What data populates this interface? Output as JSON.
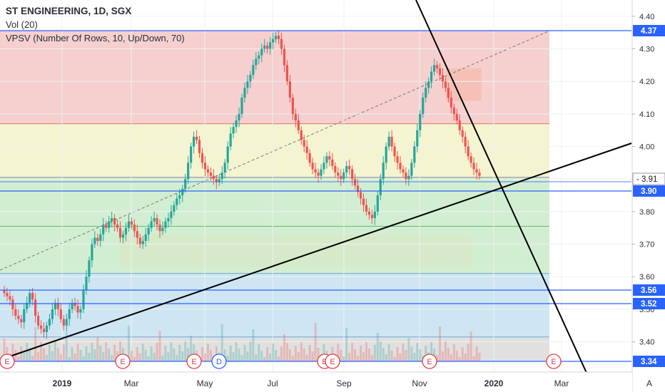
{
  "legend": {
    "title": "ST ENGINEERING, 1D, SGX",
    "volume": "Vol (20)",
    "vpsv": "VPSV (Number Of Rows, 10, Up/Down, 70)"
  },
  "colors": {
    "up": "#26a69a",
    "down": "#ef5350",
    "hline": "#2962ff",
    "trend": "#000000",
    "fib_top": "#f3c4c2",
    "fib_mid": "#f3f3cc",
    "fib_low": "#cdeccd",
    "fib_bottom": "#c9e3f2",
    "fib_floor": "#dddddd"
  },
  "chart_data": {
    "type": "candlestick",
    "title": "ST ENGINEERING, 1D, SGX",
    "ylim": [
      3.34,
      4.45
    ],
    "y_ticks": [
      "4.40",
      "4.30",
      "4.20",
      "4.10",
      "4.00",
      "3.90",
      "3.80",
      "3.70",
      "3.60",
      "3.50",
      "3.40"
    ],
    "x_tick_labels": [
      "2019",
      "Mar",
      "May",
      "Jul",
      "Sep",
      "Nov",
      "2020",
      "Mar"
    ],
    "horizontal_levels": [
      "4.37",
      "3.90",
      "3.56",
      "3.52",
      "3.34"
    ],
    "last_price": "3.91",
    "event_markers": [
      "E",
      "E",
      "E",
      "D",
      "E",
      "E",
      "E",
      "E"
    ],
    "closes": [
      3.55,
      3.54,
      3.53,
      3.5,
      3.48,
      3.47,
      3.46,
      3.5,
      3.52,
      3.55,
      3.53,
      3.48,
      3.45,
      3.44,
      3.43,
      3.45,
      3.47,
      3.5,
      3.52,
      3.5,
      3.47,
      3.45,
      3.47,
      3.5,
      3.52,
      3.51,
      3.49,
      3.5,
      3.56,
      3.6,
      3.65,
      3.7,
      3.72,
      3.71,
      3.73,
      3.76,
      3.75,
      3.77,
      3.78,
      3.76,
      3.75,
      3.72,
      3.73,
      3.75,
      3.77,
      3.76,
      3.74,
      3.72,
      3.7,
      3.71,
      3.73,
      3.75,
      3.77,
      3.78,
      3.76,
      3.74,
      3.75,
      3.77,
      3.78,
      3.8,
      3.82,
      3.84,
      3.85,
      3.87,
      3.9,
      3.95,
      4.0,
      4.03,
      4.02,
      3.98,
      3.95,
      3.93,
      3.92,
      3.91,
      3.9,
      3.89,
      3.9,
      3.92,
      3.95,
      4.0,
      4.04,
      4.06,
      4.08,
      4.1,
      4.15,
      4.18,
      4.2,
      4.22,
      4.25,
      4.27,
      4.28,
      4.3,
      4.31,
      4.3,
      4.32,
      4.33,
      4.34,
      4.33,
      4.3,
      4.25,
      4.2,
      4.15,
      4.1,
      4.08,
      4.05,
      4.02,
      4.0,
      3.98,
      3.95,
      3.93,
      3.92,
      3.91,
      3.93,
      3.95,
      3.97,
      3.96,
      3.94,
      3.92,
      3.91,
      3.9,
      3.92,
      3.94,
      3.93,
      3.9,
      3.88,
      3.86,
      3.84,
      3.82,
      3.8,
      3.79,
      3.78,
      3.8,
      3.85,
      3.9,
      3.95,
      4.0,
      4.03,
      4.0,
      3.97,
      3.95,
      3.93,
      3.92,
      3.9,
      3.91,
      3.95,
      4.0,
      4.05,
      4.1,
      4.15,
      4.18,
      4.2,
      4.23,
      4.25,
      4.24,
      4.22,
      4.2,
      4.18,
      4.15,
      4.12,
      4.1,
      4.08,
      4.05,
      4.03,
      4.0,
      3.97,
      3.95,
      3.93,
      3.92,
      3.91
    ]
  },
  "price_axis": {
    "levels": [
      "4.37",
      "3.90",
      "3.56",
      "3.52",
      "3.34"
    ],
    "last": "3.91"
  },
  "footer": {
    "auto_label": "A"
  }
}
